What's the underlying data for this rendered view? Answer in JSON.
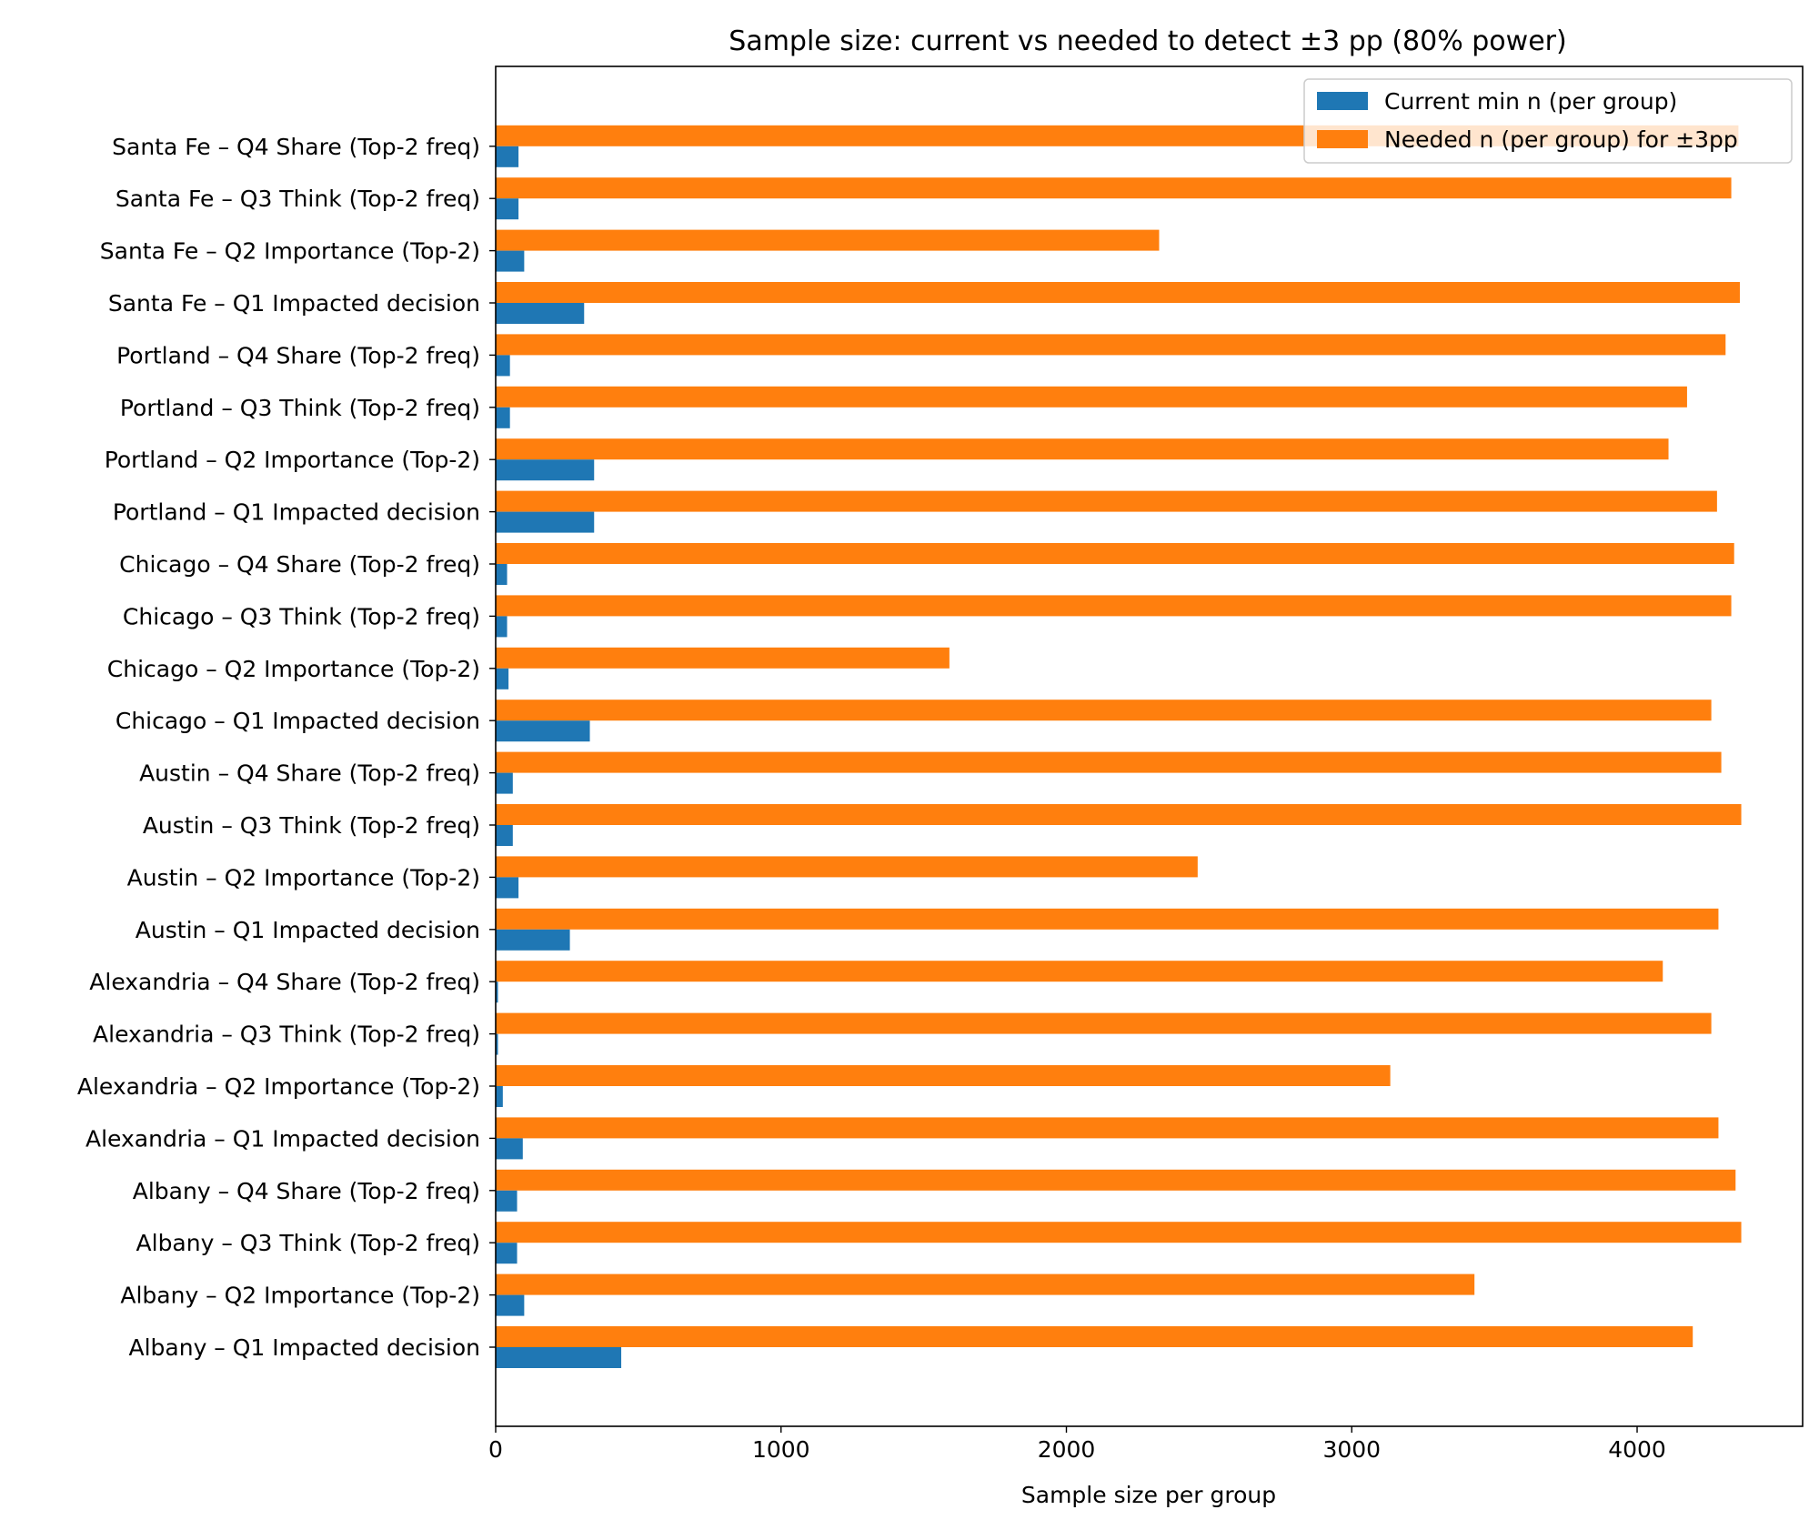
{
  "chart_data": {
    "type": "bar",
    "orientation": "horizontal",
    "title": "Sample size: current vs needed to detect ±3 pp (80% power)",
    "xlabel": "Sample size per group",
    "ylabel": "",
    "xlim": [
      0,
      4580
    ],
    "xticks": [
      0,
      1000,
      2000,
      3000,
      4000
    ],
    "grid": false,
    "legend_position": "top-right",
    "categories": [
      "Albany – Q1 Impacted decision",
      "Albany – Q2 Importance (Top-2)",
      "Albany – Q3 Think (Top-2 freq)",
      "Albany – Q4 Share (Top-2 freq)",
      "Alexandria – Q1 Impacted decision",
      "Alexandria – Q2 Importance (Top-2)",
      "Alexandria – Q3 Think (Top-2 freq)",
      "Alexandria – Q4 Share (Top-2 freq)",
      "Austin – Q1 Impacted decision",
      "Austin – Q2 Importance (Top-2)",
      "Austin – Q3 Think (Top-2 freq)",
      "Austin – Q4 Share (Top-2 freq)",
      "Chicago – Q1 Impacted decision",
      "Chicago – Q2 Importance (Top-2)",
      "Chicago – Q3 Think (Top-2 freq)",
      "Chicago – Q4 Share (Top-2 freq)",
      "Portland – Q1 Impacted decision",
      "Portland – Q2 Importance (Top-2)",
      "Portland – Q3 Think (Top-2 freq)",
      "Portland – Q4 Share (Top-2 freq)",
      "Santa Fe – Q1 Impacted decision",
      "Santa Fe – Q2 Importance (Top-2)",
      "Santa Fe – Q3 Think (Top-2 freq)",
      "Santa Fe – Q4 Share (Top-2 freq)"
    ],
    "series": [
      {
        "name": "Current min n (per group)",
        "color": "#1f77b4",
        "values": [
          440,
          100,
          75,
          75,
          95,
          25,
          8,
          8,
          260,
          80,
          60,
          60,
          330,
          45,
          40,
          40,
          345,
          345,
          50,
          50,
          310,
          100,
          80,
          80
        ]
      },
      {
        "name": "Needed n (per group) for ±3pp",
        "color": "#ff7f0e",
        "values": [
          4195,
          3430,
          4365,
          4345,
          4285,
          3135,
          4260,
          4090,
          4285,
          2460,
          4365,
          4295,
          4260,
          1590,
          4330,
          4340,
          4280,
          4110,
          4175,
          4310,
          4360,
          2325,
          4330,
          4355
        ]
      }
    ]
  }
}
